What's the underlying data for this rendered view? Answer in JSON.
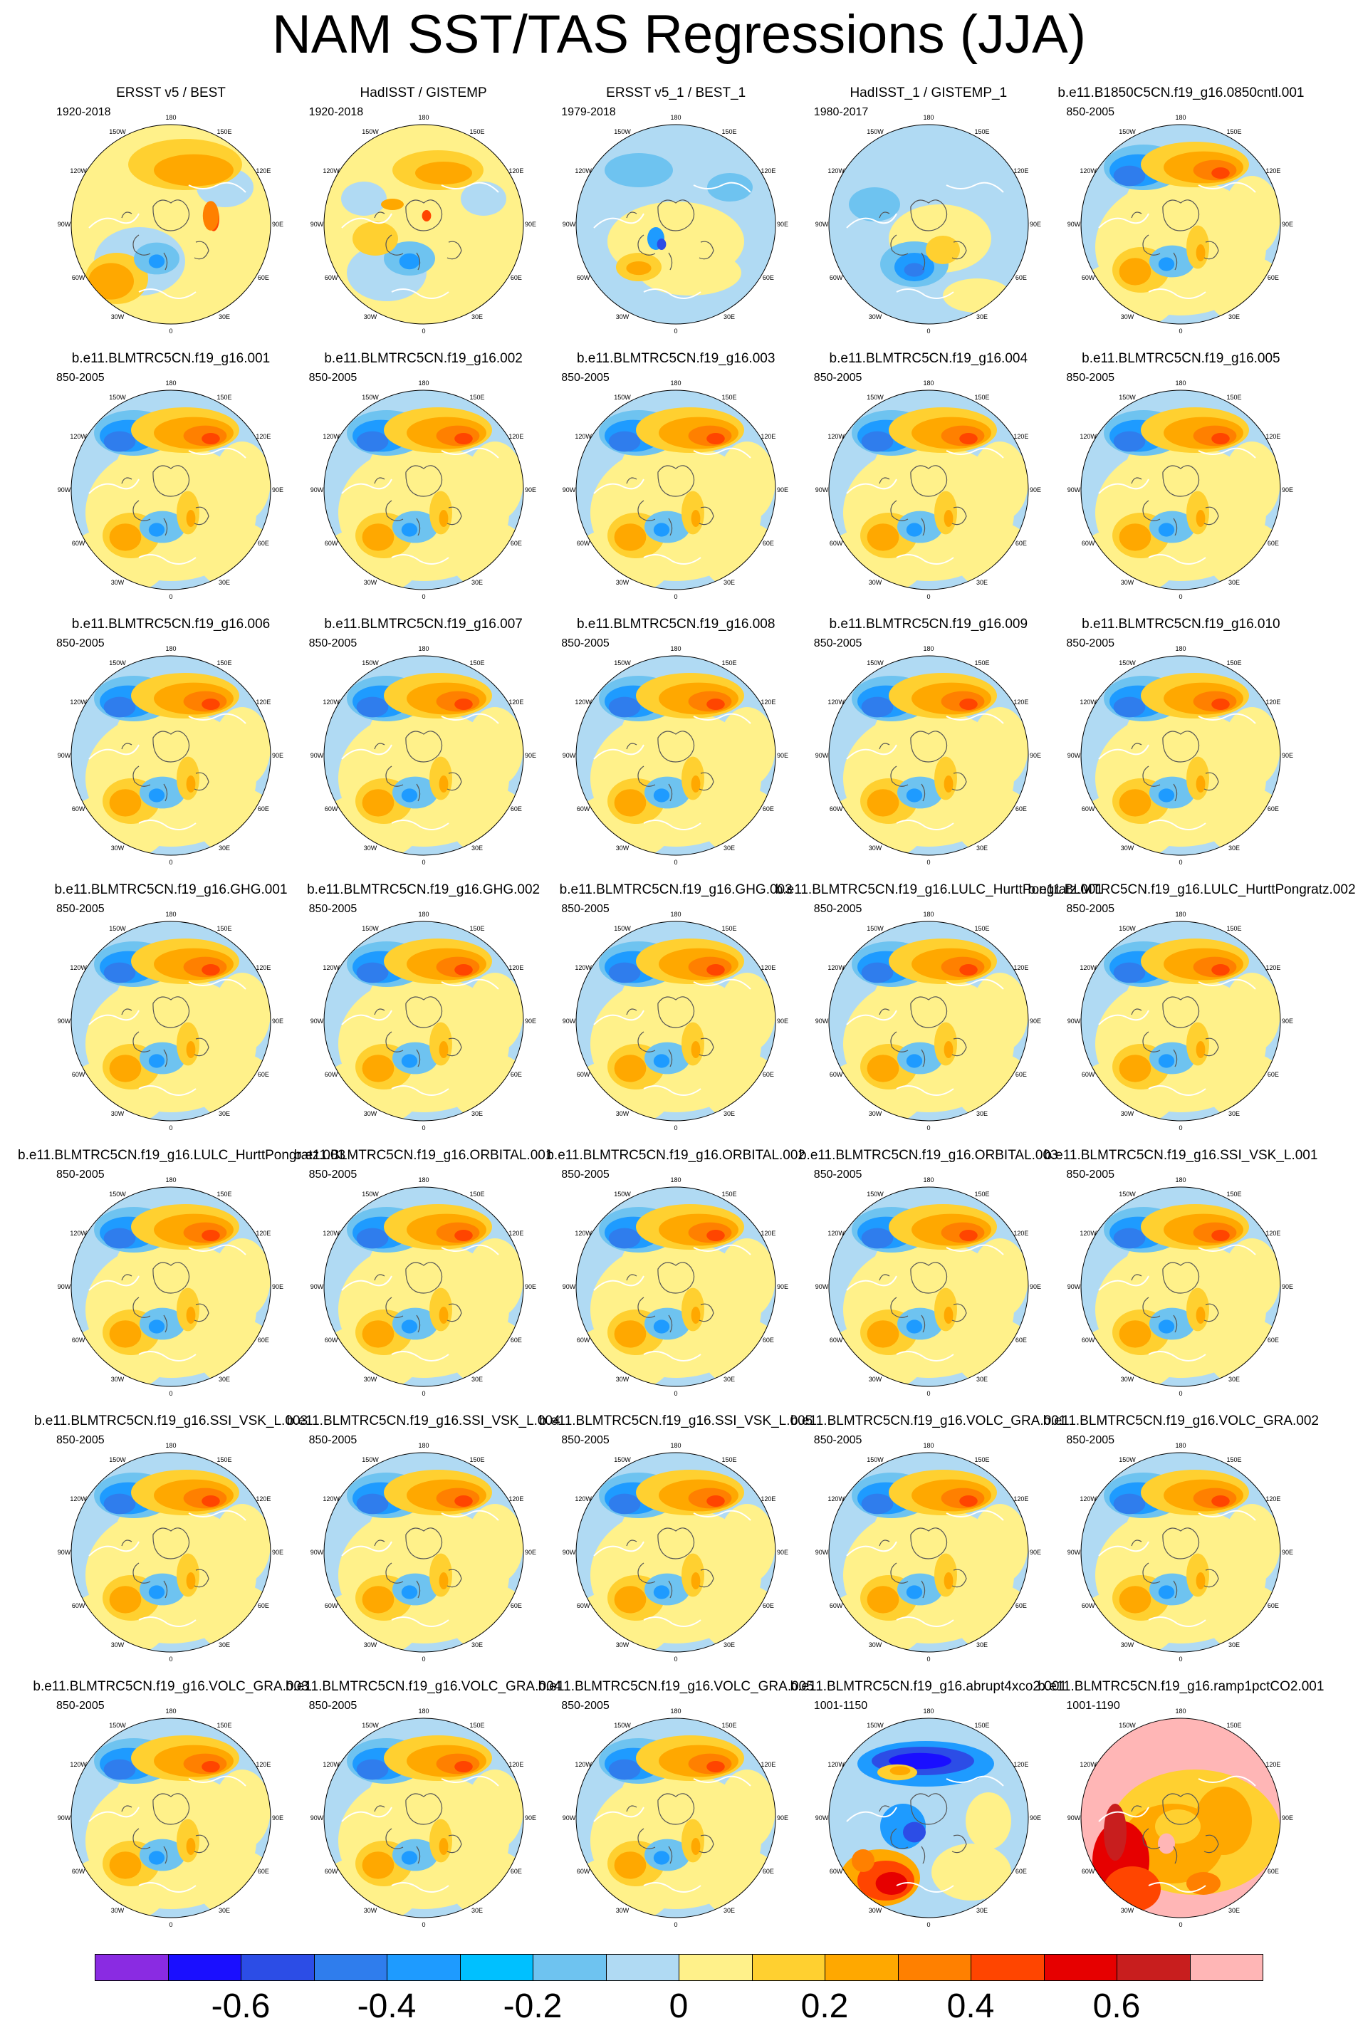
{
  "title": "NAM SST/TAS Regressions (JJA)",
  "lon_labels": [
    "180",
    "150E",
    "120E",
    "90E",
    "60E",
    "30E",
    "0",
    "30W",
    "60W",
    "90W",
    "120W",
    "150W"
  ],
  "panels": [
    {
      "title": "ERSST v5 / BEST",
      "range": "1920-2018",
      "pattern": "obs1"
    },
    {
      "title": "HadISST / GISTEMP",
      "range": "1920-2018",
      "pattern": "obs2"
    },
    {
      "title": "ERSST v5_1 / BEST_1",
      "range": "1979-2018",
      "pattern": "obs3"
    },
    {
      "title": "HadISST_1 / GISTEMP_1",
      "range": "1980-2017",
      "pattern": "obs4"
    },
    {
      "title": "b.e11.B1850C5CN.f19_g16.0850cntl.001",
      "range": "850-2005",
      "pattern": "model"
    },
    {
      "title": "b.e11.BLMTRC5CN.f19_g16.001",
      "range": "850-2005",
      "pattern": "model"
    },
    {
      "title": "b.e11.BLMTRC5CN.f19_g16.002",
      "range": "850-2005",
      "pattern": "model"
    },
    {
      "title": "b.e11.BLMTRC5CN.f19_g16.003",
      "range": "850-2005",
      "pattern": "model"
    },
    {
      "title": "b.e11.BLMTRC5CN.f19_g16.004",
      "range": "850-2005",
      "pattern": "model"
    },
    {
      "title": "b.e11.BLMTRC5CN.f19_g16.005",
      "range": "850-2005",
      "pattern": "model"
    },
    {
      "title": "b.e11.BLMTRC5CN.f19_g16.006",
      "range": "850-2005",
      "pattern": "model"
    },
    {
      "title": "b.e11.BLMTRC5CN.f19_g16.007",
      "range": "850-2005",
      "pattern": "model"
    },
    {
      "title": "b.e11.BLMTRC5CN.f19_g16.008",
      "range": "850-2005",
      "pattern": "model"
    },
    {
      "title": "b.e11.BLMTRC5CN.f19_g16.009",
      "range": "850-2005",
      "pattern": "model"
    },
    {
      "title": "b.e11.BLMTRC5CN.f19_g16.010",
      "range": "850-2005",
      "pattern": "model"
    },
    {
      "title": "b.e11.BLMTRC5CN.f19_g16.GHG.001",
      "range": "850-2005",
      "pattern": "model"
    },
    {
      "title": "b.e11.BLMTRC5CN.f19_g16.GHG.002",
      "range": "850-2005",
      "pattern": "model"
    },
    {
      "title": "b.e11.BLMTRC5CN.f19_g16.GHG.003",
      "range": "850-2005",
      "pattern": "model"
    },
    {
      "title": "b.e11.BLMTRC5CN.f19_g16.LULC_HurttPongratz.001",
      "range": "850-2005",
      "pattern": "model"
    },
    {
      "title": "b.e11.BLMTRC5CN.f19_g16.LULC_HurttPongratz.002",
      "range": "850-2005",
      "pattern": "model"
    },
    {
      "title": "b.e11.BLMTRC5CN.f19_g16.LULC_HurttPongratz.003",
      "range": "850-2005",
      "pattern": "model"
    },
    {
      "title": "b.e11.BLMTRC5CN.f19_g16.ORBITAL.001",
      "range": "850-2005",
      "pattern": "model"
    },
    {
      "title": "b.e11.BLMTRC5CN.f19_g16.ORBITAL.002",
      "range": "850-2005",
      "pattern": "model"
    },
    {
      "title": "b.e11.BLMTRC5CN.f19_g16.ORBITAL.003",
      "range": "850-2005",
      "pattern": "model"
    },
    {
      "title": "b.e11.BLMTRC5CN.f19_g16.SSI_VSK_L.001",
      "range": "850-2005",
      "pattern": "model"
    },
    {
      "title": "b.e11.BLMTRC5CN.f19_g16.SSI_VSK_L.003",
      "range": "850-2005",
      "pattern": "model"
    },
    {
      "title": "b.e11.BLMTRC5CN.f19_g16.SSI_VSK_L.004",
      "range": "850-2005",
      "pattern": "model"
    },
    {
      "title": "b.e11.BLMTRC5CN.f19_g16.SSI_VSK_L.005",
      "range": "850-2005",
      "pattern": "model"
    },
    {
      "title": "b.e11.BLMTRC5CN.f19_g16.VOLC_GRA.001",
      "range": "850-2005",
      "pattern": "model"
    },
    {
      "title": "b.e11.BLMTRC5CN.f19_g16.VOLC_GRA.002",
      "range": "850-2005",
      "pattern": "model"
    },
    {
      "title": "b.e11.BLMTRC5CN.f19_g16.VOLC_GRA.003",
      "range": "850-2005",
      "pattern": "model"
    },
    {
      "title": "b.e11.BLMTRC5CN.f19_g16.VOLC_GRA.004",
      "range": "850-2005",
      "pattern": "model"
    },
    {
      "title": "b.e11.BLMTRC5CN.f19_g16.VOLC_GRA.005",
      "range": "850-2005",
      "pattern": "model"
    },
    {
      "title": "b.e11.BLMTRC5CN.f19_g16.abrupt4xco2.001",
      "range": "1001-1150",
      "pattern": "abrupt"
    },
    {
      "title": "b.e11.BLMTRC5CN.f19_g16.ramp1pctCO2.001",
      "range": "1001-1190",
      "pattern": "ramp"
    }
  ],
  "colorbar": {
    "colors": [
      "#8a2be2",
      "#1a0fff",
      "#2c4de6",
      "#2f7ded",
      "#1e9bff",
      "#00c0ff",
      "#6ec3f0",
      "#b0daf3",
      "#fff18a",
      "#ffd030",
      "#ffa800",
      "#ff8000",
      "#ff4500",
      "#e60000",
      "#c81e1e",
      "#ffb6b6"
    ],
    "tick_labels": [
      "-0.6",
      "-0.4",
      "-0.2",
      "0",
      "0.2",
      "0.4",
      "0.6"
    ]
  }
}
